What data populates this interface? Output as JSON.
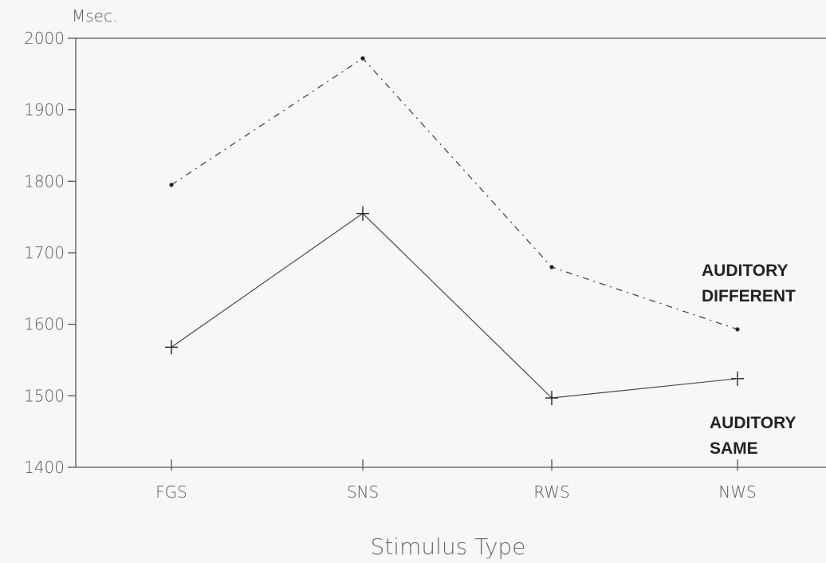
{
  "chart_data": {
    "type": "line",
    "unit_label": "Msec.",
    "xlabel": "Stimulus Type",
    "categories": [
      "FGS",
      "SNS",
      "RWS",
      "NWS"
    ],
    "ylim": [
      1400,
      2000
    ],
    "yticks": [
      2000,
      1900,
      1800,
      1700,
      1600,
      1500,
      1400
    ],
    "grid": false,
    "series": [
      {
        "name": "AUDITORY DIFFERENT",
        "label_lines": [
          "AUDITORY",
          "DIFFERENT"
        ],
        "values": [
          1795,
          1972,
          1680,
          1593
        ],
        "style": "dash-dot",
        "marker": "dot",
        "color": "#3a3a3a"
      },
      {
        "name": "AUDITORY SAME",
        "label_lines": [
          "AUDITORY",
          "SAME"
        ],
        "values": [
          1568,
          1755,
          1497,
          1524
        ],
        "style": "solid",
        "marker": "plus",
        "color": "#4a4a4a"
      }
    ]
  }
}
